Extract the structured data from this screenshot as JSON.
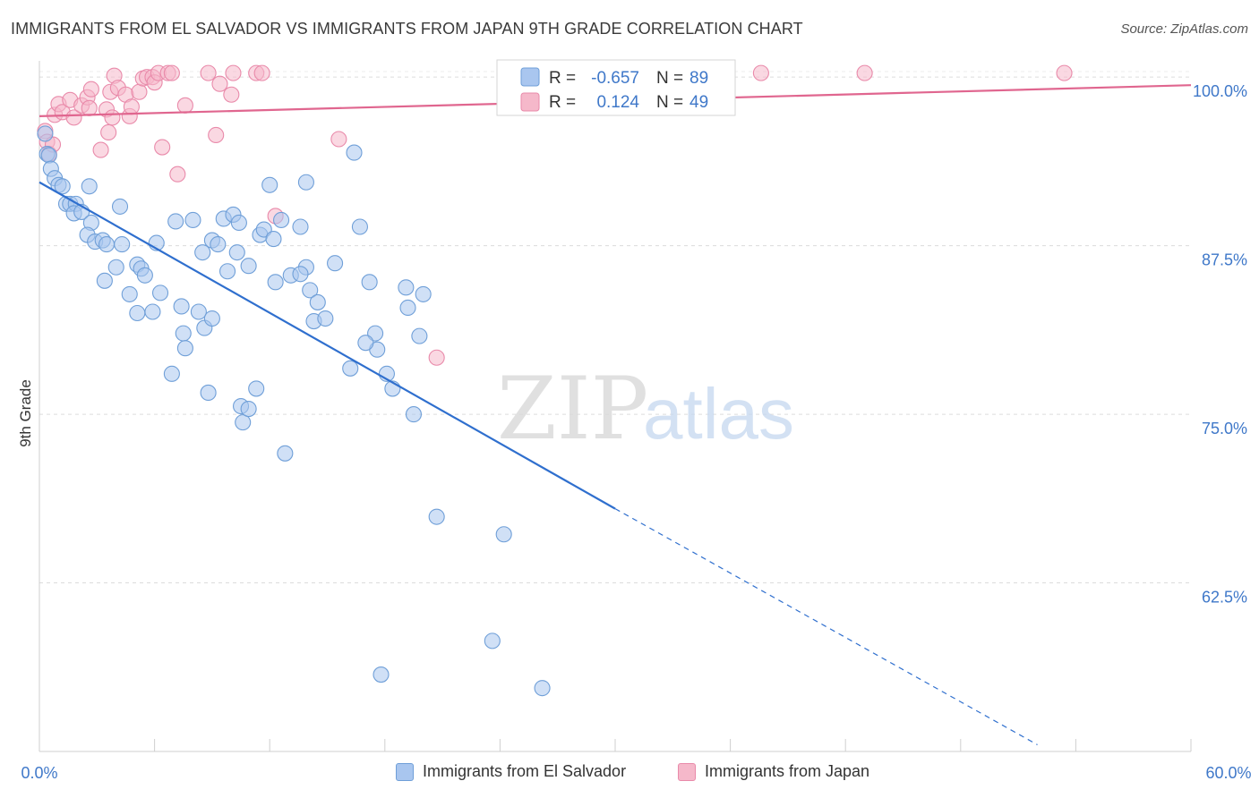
{
  "title": "IMMIGRANTS FROM EL SALVADOR VS IMMIGRANTS FROM JAPAN 9TH GRADE CORRELATION CHART",
  "source": "Source: ZipAtlas.com",
  "watermark": {
    "zip": "ZIP",
    "atlas": "atlas"
  },
  "colors": {
    "blue_fill": "#a9c6ef",
    "blue_stroke": "#6f9fd8",
    "blue_line": "#2f6fce",
    "pink_fill": "#f5b8ca",
    "pink_stroke": "#e98aaa",
    "pink_line": "#e0668f",
    "axis_text_blue": "#3f78c9"
  },
  "legend": {
    "rows": [
      {
        "r_label": "R =",
        "r_value": "-0.657",
        "n_label": "N =",
        "n_value": "89"
      },
      {
        "r_label": "R =",
        "r_value": "0.124",
        "n_label": "N =",
        "n_value": "49"
      }
    ]
  },
  "bottom_legend": [
    "Immigrants from El Salvador",
    "Immigrants from Japan"
  ],
  "chart_data": {
    "type": "scatter",
    "title": "IMMIGRANTS FROM EL SALVADOR VS IMMIGRANTS FROM JAPAN 9TH GRADE CORRELATION CHART",
    "xlabel": "",
    "ylabel": "9th Grade",
    "xlim": [
      0,
      60
    ],
    "ylim": [
      50,
      102
    ],
    "x_tick_labels": [
      "0.0%",
      "60.0%"
    ],
    "y_ticks": [
      62.5,
      75.0,
      87.5,
      100.0
    ],
    "y_tick_labels": [
      "62.5%",
      "75.0%",
      "87.5%",
      "100.0%"
    ],
    "grid": true,
    "legend_position": "top-center",
    "series": [
      {
        "name": "Immigrants from El Salvador",
        "color": "#a9c6ef",
        "trend": {
          "x": [
            0.0,
            30.0
          ],
          "y": [
            92.2,
            68.0
          ],
          "dashed_to": [
            52.0,
            50.5
          ]
        },
        "points": [
          [
            0.3,
            95.8
          ],
          [
            0.4,
            94.3
          ],
          [
            0.5,
            94.2
          ],
          [
            0.6,
            93.2
          ],
          [
            0.8,
            92.5
          ],
          [
            1.0,
            92.0
          ],
          [
            1.2,
            91.9
          ],
          [
            1.4,
            90.6
          ],
          [
            1.6,
            90.6
          ],
          [
            1.9,
            90.6
          ],
          [
            1.8,
            89.9
          ],
          [
            2.2,
            90.0
          ],
          [
            2.6,
            91.9
          ],
          [
            2.7,
            89.2
          ],
          [
            2.5,
            88.3
          ],
          [
            2.9,
            87.8
          ],
          [
            3.3,
            87.9
          ],
          [
            3.5,
            87.6
          ],
          [
            4.2,
            90.4
          ],
          [
            4.3,
            87.6
          ],
          [
            5.1,
            86.1
          ],
          [
            5.3,
            85.8
          ],
          [
            5.5,
            85.3
          ],
          [
            4.0,
            85.9
          ],
          [
            3.4,
            84.9
          ],
          [
            4.7,
            83.9
          ],
          [
            5.1,
            82.5
          ],
          [
            5.9,
            82.6
          ],
          [
            6.3,
            84.0
          ],
          [
            6.1,
            87.7
          ],
          [
            7.1,
            89.3
          ],
          [
            8.0,
            89.4
          ],
          [
            8.5,
            87.0
          ],
          [
            9.0,
            87.9
          ],
          [
            9.3,
            87.6
          ],
          [
            9.6,
            89.5
          ],
          [
            10.1,
            89.8
          ],
          [
            10.4,
            89.2
          ],
          [
            10.3,
            87.0
          ],
          [
            9.8,
            85.6
          ],
          [
            10.9,
            86.0
          ],
          [
            11.5,
            88.3
          ],
          [
            11.7,
            88.7
          ],
          [
            12.2,
            88.0
          ],
          [
            12.6,
            89.4
          ],
          [
            13.6,
            88.9
          ],
          [
            13.1,
            85.3
          ],
          [
            13.9,
            85.9
          ],
          [
            14.1,
            84.2
          ],
          [
            12.3,
            84.8
          ],
          [
            12.0,
            92.0
          ],
          [
            13.9,
            92.2
          ],
          [
            14.5,
            83.3
          ],
          [
            14.3,
            81.9
          ],
          [
            14.9,
            82.1
          ],
          [
            15.4,
            86.2
          ],
          [
            16.4,
            94.4
          ],
          [
            16.7,
            88.9
          ],
          [
            17.2,
            84.8
          ],
          [
            19.1,
            84.4
          ],
          [
            19.2,
            82.9
          ],
          [
            20.0,
            83.9
          ],
          [
            19.8,
            80.8
          ],
          [
            17.5,
            81.0
          ],
          [
            17.6,
            79.8
          ],
          [
            17.0,
            80.3
          ],
          [
            16.2,
            78.4
          ],
          [
            18.1,
            78.0
          ],
          [
            18.4,
            76.9
          ],
          [
            19.5,
            75.0
          ],
          [
            7.4,
            83.0
          ],
          [
            7.5,
            81.0
          ],
          [
            8.3,
            82.6
          ],
          [
            8.6,
            81.4
          ],
          [
            9.0,
            82.1
          ],
          [
            8.8,
            76.6
          ],
          [
            7.6,
            79.9
          ],
          [
            6.9,
            78.0
          ],
          [
            10.5,
            75.6
          ],
          [
            10.6,
            74.4
          ],
          [
            11.3,
            76.9
          ],
          [
            12.8,
            72.1
          ],
          [
            20.7,
            67.4
          ],
          [
            24.2,
            66.1
          ],
          [
            23.6,
            58.2
          ],
          [
            17.8,
            55.7
          ],
          [
            26.2,
            54.7
          ],
          [
            10.9,
            75.4
          ],
          [
            13.6,
            85.4
          ]
        ]
      },
      {
        "name": "Immigrants from Japan",
        "color": "#f5b8ca",
        "trend": {
          "x": [
            0.0,
            60.0
          ],
          "y": [
            97.1,
            99.4
          ]
        },
        "points": [
          [
            0.3,
            96.0
          ],
          [
            0.4,
            95.2
          ],
          [
            0.5,
            94.3
          ],
          [
            0.7,
            95.0
          ],
          [
            0.8,
            97.2
          ],
          [
            1.0,
            98.0
          ],
          [
            1.2,
            97.4
          ],
          [
            1.6,
            98.3
          ],
          [
            1.8,
            97.0
          ],
          [
            2.2,
            97.9
          ],
          [
            2.5,
            98.5
          ],
          [
            2.6,
            97.7
          ],
          [
            2.7,
            99.1
          ],
          [
            3.2,
            94.6
          ],
          [
            3.5,
            97.6
          ],
          [
            3.6,
            95.9
          ],
          [
            3.8,
            97.0
          ],
          [
            3.7,
            98.9
          ],
          [
            3.9,
            100.1
          ],
          [
            4.1,
            99.2
          ],
          [
            4.5,
            98.7
          ],
          [
            4.7,
            97.1
          ],
          [
            4.8,
            97.8
          ],
          [
            5.2,
            98.9
          ],
          [
            5.4,
            99.9
          ],
          [
            5.6,
            100.0
          ],
          [
            5.9,
            100.0
          ],
          [
            6.0,
            99.6
          ],
          [
            6.2,
            100.3
          ],
          [
            6.4,
            94.8
          ],
          [
            6.7,
            100.3
          ],
          [
            6.9,
            100.3
          ],
          [
            7.2,
            92.8
          ],
          [
            7.6,
            97.9
          ],
          [
            9.2,
            95.7
          ],
          [
            8.8,
            100.3
          ],
          [
            9.4,
            99.5
          ],
          [
            10.1,
            100.3
          ],
          [
            10.0,
            98.7
          ],
          [
            11.3,
            100.3
          ],
          [
            11.6,
            100.3
          ],
          [
            12.3,
            89.7
          ],
          [
            15.6,
            95.4
          ],
          [
            20.7,
            79.2
          ],
          [
            28.7,
            100.3
          ],
          [
            31.5,
            100.3
          ],
          [
            37.6,
            100.3
          ],
          [
            43.0,
            100.3
          ],
          [
            53.4,
            100.3
          ]
        ]
      }
    ]
  }
}
